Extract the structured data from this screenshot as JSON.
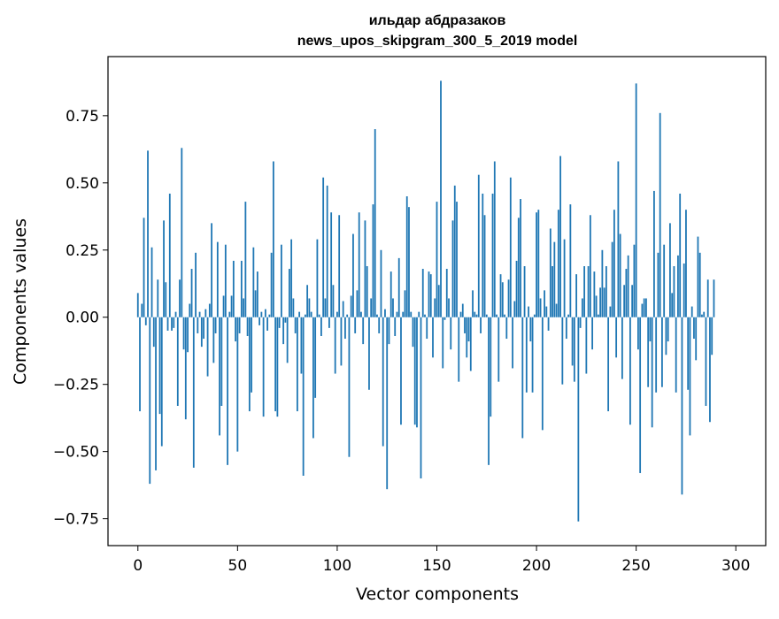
{
  "chart_data": {
    "type": "bar",
    "title_line1": "ильдар абдразаков",
    "title_line2": "news_upos_skipgram_300_5_2019 model",
    "xlabel": "Vector components",
    "ylabel": "Components values",
    "xlim": [
      -15,
      315
    ],
    "ylim": [
      -0.85,
      0.97
    ],
    "xticks": [
      0,
      50,
      100,
      150,
      200,
      250,
      300
    ],
    "xtick_labels": [
      "0",
      "50",
      "100",
      "150",
      "200",
      "250",
      "300"
    ],
    "yticks": [
      -0.75,
      -0.5,
      -0.25,
      0.0,
      0.25,
      0.5,
      0.75
    ],
    "ytick_labels": [
      "−0.75",
      "−0.50",
      "−0.25",
      "0.00",
      "0.25",
      "0.50",
      "0.75"
    ],
    "bar_color": "#1f77b4",
    "grid": false,
    "values": [
      0.09,
      -0.35,
      0.05,
      0.37,
      -0.03,
      0.62,
      -0.62,
      0.26,
      -0.11,
      -0.57,
      0.14,
      -0.36,
      -0.48,
      0.36,
      0.13,
      -0.05,
      0.46,
      -0.05,
      -0.04,
      0.02,
      -0.33,
      0.14,
      0.63,
      -0.12,
      -0.38,
      -0.13,
      0.05,
      0.18,
      -0.56,
      0.24,
      -0.06,
      0.02,
      -0.11,
      -0.08,
      0.03,
      -0.22,
      0.05,
      0.35,
      -0.17,
      -0.06,
      0.28,
      -0.44,
      -0.33,
      0.08,
      0.27,
      -0.55,
      0.02,
      0.08,
      0.21,
      -0.09,
      -0.5,
      -0.06,
      0.21,
      0.07,
      0.43,
      -0.07,
      -0.35,
      -0.28,
      0.26,
      0.1,
      0.17,
      -0.03,
      0.02,
      -0.37,
      0.03,
      -0.05,
      0.01,
      0.24,
      0.58,
      -0.35,
      -0.37,
      -0.04,
      0.27,
      -0.1,
      -0.02,
      -0.17,
      0.18,
      0.29,
      0.07,
      -0.06,
      -0.35,
      0.02,
      -0.21,
      -0.59,
      0.01,
      0.12,
      0.07,
      0.02,
      -0.45,
      -0.3,
      0.29,
      0.01,
      -0.07,
      0.52,
      0.07,
      0.49,
      -0.04,
      0.39,
      0.12,
      -0.21,
      0.02,
      0.38,
      -0.18,
      0.06,
      -0.08,
      0.01,
      -0.52,
      0.08,
      0.31,
      -0.06,
      0.1,
      0.39,
      0.02,
      -0.1,
      0.36,
      0.19,
      -0.27,
      0.07,
      0.42,
      0.7,
      0.01,
      -0.06,
      0.25,
      -0.48,
      0.03,
      -0.64,
      -0.1,
      0.17,
      0.07,
      -0.07,
      0.02,
      0.22,
      -0.4,
      0.02,
      0.1,
      0.45,
      0.41,
      0.02,
      -0.11,
      -0.4,
      -0.41,
      0.02,
      -0.6,
      0.18,
      0.01,
      -0.08,
      0.17,
      0.16,
      -0.15,
      0.07,
      0.43,
      0.12,
      0.88,
      -0.19,
      -0.01,
      0.18,
      0.07,
      -0.12,
      0.36,
      0.49,
      0.43,
      -0.24,
      0.02,
      0.05,
      -0.06,
      -0.15,
      -0.09,
      -0.2,
      0.1,
      0.02,
      0.01,
      0.53,
      -0.06,
      0.46,
      0.38,
      0.01,
      -0.55,
      -0.37,
      0.46,
      0.58,
      0.01,
      -0.24,
      0.16,
      0.13,
      0.01,
      -0.08,
      0.14,
      0.52,
      -0.19,
      0.06,
      0.21,
      0.37,
      0.44,
      -0.45,
      0.19,
      -0.28,
      0.04,
      -0.09,
      -0.28,
      0.01,
      0.39,
      0.4,
      0.07,
      -0.42,
      0.1,
      0.04,
      -0.05,
      0.33,
      0.19,
      0.28,
      0.05,
      0.4,
      0.6,
      -0.25,
      0.29,
      -0.08,
      0.01,
      0.42,
      -0.18,
      -0.24,
      0.16,
      -0.76,
      -0.04,
      0.07,
      0.19,
      -0.21,
      0.19,
      0.38,
      -0.12,
      0.17,
      0.08,
      0.01,
      0.11,
      0.25,
      0.11,
      0.19,
      -0.35,
      0.04,
      0.28,
      0.4,
      -0.15,
      0.58,
      0.31,
      -0.23,
      0.12,
      0.18,
      0.23,
      -0.4,
      0.12,
      0.27,
      0.87,
      -0.12,
      -0.58,
      0.05,
      0.07,
      0.07,
      -0.26,
      -0.09,
      -0.41,
      0.47,
      -0.28,
      0.24,
      0.76,
      -0.26,
      0.27,
      -0.14,
      -0.09,
      0.35,
      0.09,
      0.19,
      -0.28,
      0.23,
      0.46,
      -0.66,
      0.2,
      0.4,
      -0.27,
      -0.44,
      0.04,
      -0.08,
      -0.16,
      0.3,
      0.24,
      0.01,
      0.02,
      -0.33,
      0.14,
      -0.39,
      -0.14,
      0.14
    ]
  }
}
